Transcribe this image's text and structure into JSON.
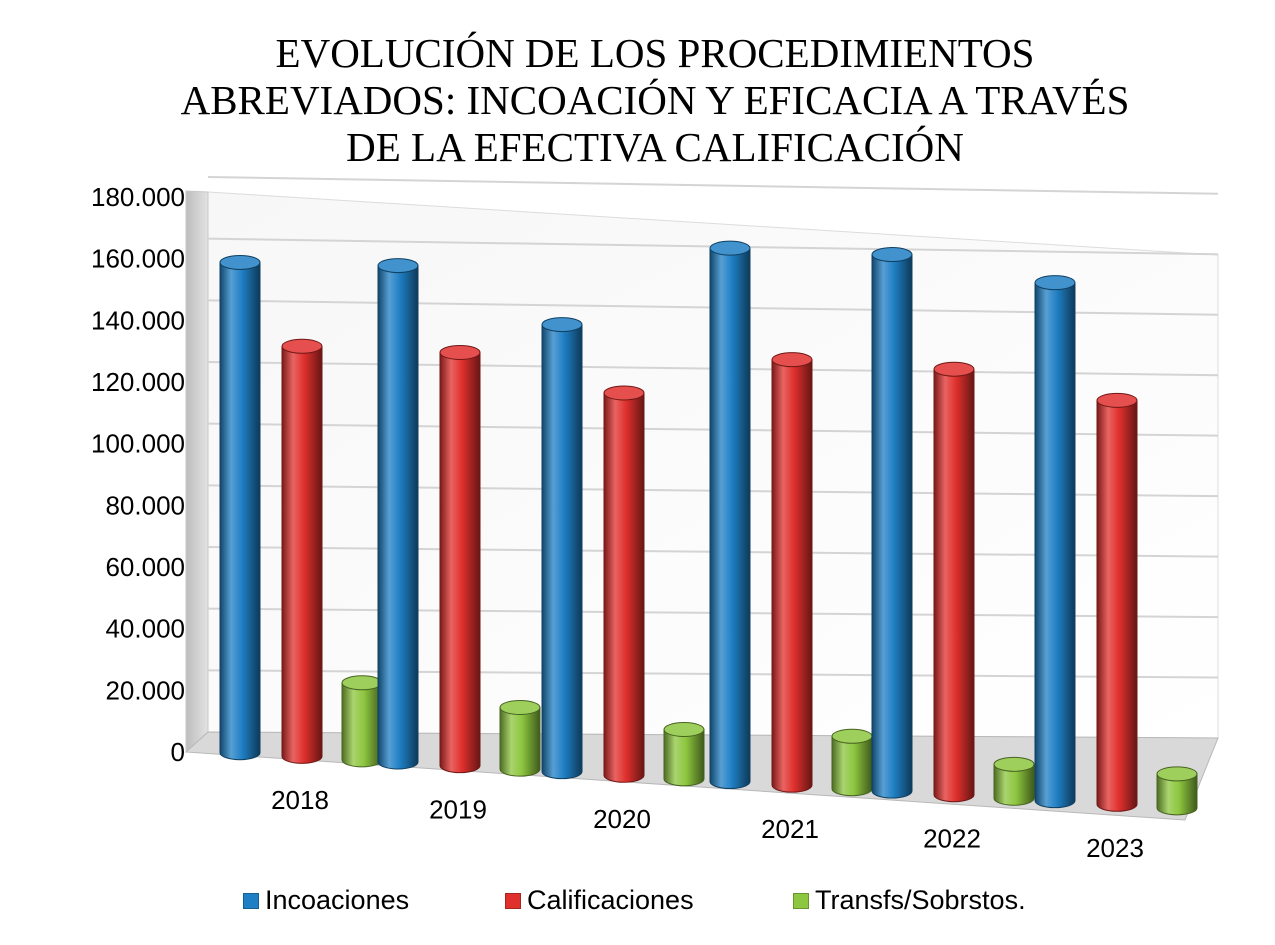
{
  "chart_data": {
    "type": "bar",
    "title_lines": [
      "EVOLUCIÓN DE LOS PROCEDIMIENTOS",
      "ABREVIADOS: INCOACIÓN Y EFICACIA A TRAVÉS",
      "DE LA EFECTIVA CALIFICACIÓN"
    ],
    "categories": [
      "2018",
      "2019",
      "2020",
      "2021",
      "2022",
      "2023"
    ],
    "series": [
      {
        "name": "Incoaciones",
        "color": "#1f7fc4",
        "values": [
          159000,
          161000,
          145000,
          173000,
          174000,
          168000
        ]
      },
      {
        "name": "Calificaciones",
        "color": "#e0302d",
        "values": [
          133000,
          134000,
          124000,
          138000,
          138000,
          131000
        ]
      },
      {
        "name": "Transfs/Sobrstos.",
        "color": "#8dc63f",
        "values": [
          25000,
          20000,
          16000,
          17000,
          11000,
          11000
        ]
      }
    ],
    "ylim": [
      0,
      180000
    ],
    "yticks": [
      0,
      20000,
      40000,
      60000,
      80000,
      100000,
      120000,
      140000,
      160000,
      180000
    ],
    "ytick_labels": [
      "0",
      "20.000",
      "40.000",
      "60.000",
      "80.000",
      "100.000",
      "120.000",
      "140.000",
      "160.000",
      "180.000"
    ],
    "grid": true,
    "legend_position": "bottom",
    "style": "3d-cylinder"
  }
}
